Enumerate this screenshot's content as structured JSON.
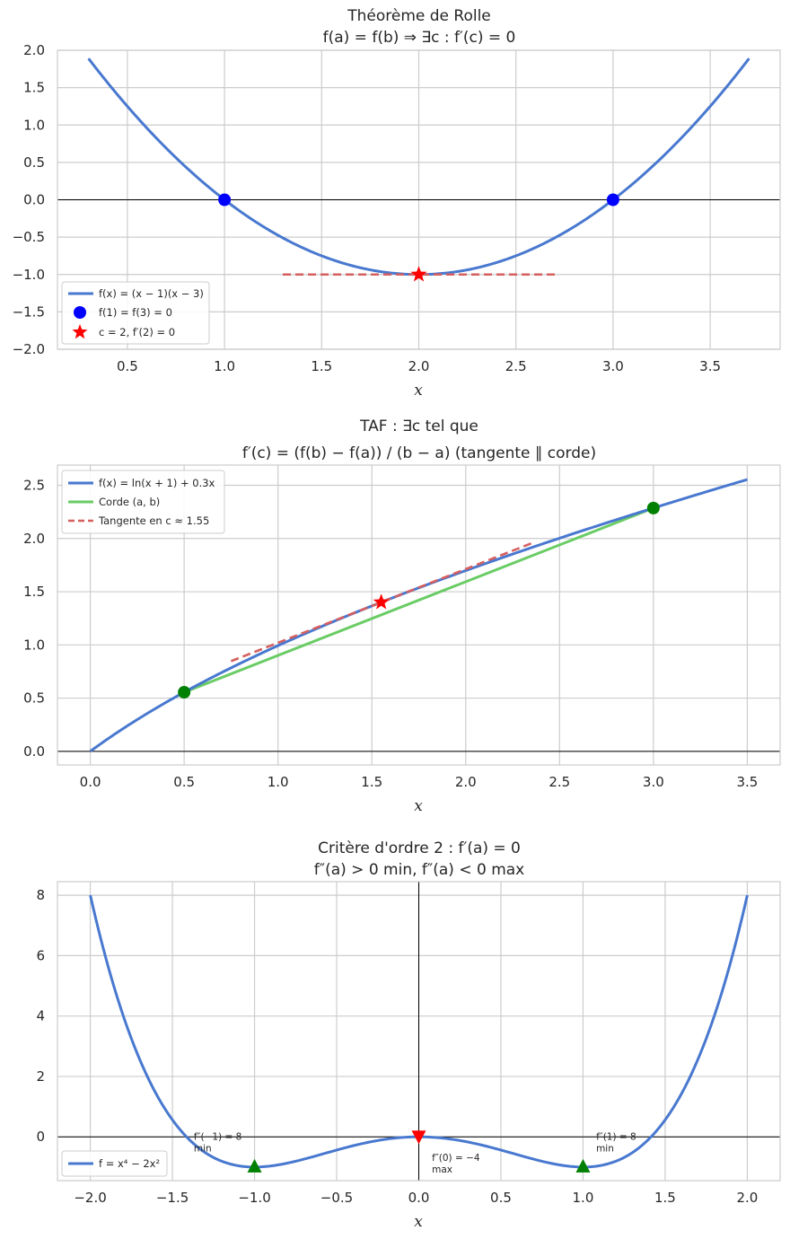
{
  "chart_data": [
    {
      "type": "line",
      "title_line1": "Théorème de Rolle",
      "title_line2": "f(a) = f(b)  ⇒  ∃c : f′(c) = 0",
      "xlabel": "x",
      "xlim": [
        0.14,
        3.86
      ],
      "ylim": [
        -2.0,
        2.0
      ],
      "xticks": [
        0.5,
        1.0,
        1.5,
        2.0,
        2.5,
        3.0,
        3.5
      ],
      "xtick_labels": [
        "0.5",
        "1.0",
        "1.5",
        "2.0",
        "2.5",
        "3.0",
        "3.5"
      ],
      "yticks": [
        -2.0,
        -1.5,
        -1.0,
        -0.5,
        0.0,
        0.5,
        1.0,
        1.5,
        2.0
      ],
      "ytick_labels": [
        "−2.0",
        "−1.5",
        "−1.0",
        "−0.5",
        "0.0",
        "0.5",
        "1.0",
        "1.5",
        "2.0"
      ],
      "function": "(x-1)*(x-3)",
      "domain": [
        0.3,
        3.7
      ],
      "color": "#4878cf",
      "tangent": {
        "x": [
          1.3,
          2.7
        ],
        "y": [
          -1.0,
          -1.0
        ],
        "color": "#d65f5f"
      },
      "points": [
        {
          "x": 1.0,
          "y": 0.0,
          "marker": "circle",
          "color": "#0000ff"
        },
        {
          "x": 3.0,
          "y": 0.0,
          "marker": "circle",
          "color": "#0000ff"
        },
        {
          "x": 2.0,
          "y": -1.0,
          "marker": "star",
          "color": "#ff0000"
        }
      ],
      "legend": [
        {
          "label": "f(x) = (x − 1)(x − 3)",
          "kind": "line",
          "color": "#4878cf"
        },
        {
          "label": "f(1) = f(3) = 0",
          "kind": "circle",
          "color": "#0000ff"
        },
        {
          "label": "c = 2, f′(2) = 0",
          "kind": "star",
          "color": "#ff0000"
        }
      ],
      "legend_loc": "lower-left",
      "grid": true
    },
    {
      "type": "line",
      "title_line1": "TAF : ∃c tel que",
      "title_line2": "f′(c) = (f(b) − f(a)) / (b − a)  (tangente ∥ corde)",
      "xlabel": "x",
      "xlim": [
        -0.175,
        3.675
      ],
      "ylim": [
        -0.128,
        2.69
      ],
      "xticks": [
        0.0,
        0.5,
        1.0,
        1.5,
        2.0,
        2.5,
        3.0,
        3.5
      ],
      "xtick_labels": [
        "0.0",
        "0.5",
        "1.0",
        "1.5",
        "2.0",
        "2.5",
        "3.0",
        "3.5"
      ],
      "yticks": [
        0.0,
        0.5,
        1.0,
        1.5,
        2.0,
        2.5
      ],
      "ytick_labels": [
        "0.0",
        "0.5",
        "1.0",
        "1.5",
        "2.0",
        "2.5"
      ],
      "function": "ln(x+1)+0.3x",
      "domain": [
        0.0,
        3.5
      ],
      "color": "#4878cf",
      "chord": {
        "x": [
          0.5,
          3.0
        ],
        "y": [
          0.555,
          2.286
        ],
        "color": "#6acc65"
      },
      "tangent": {
        "x": [
          0.75,
          2.35
        ],
        "c": 1.55,
        "slope": 0.692,
        "yc": 1.401,
        "color": "#d65f5f"
      },
      "points": [
        {
          "x": 0.5,
          "y": 0.555,
          "marker": "circle",
          "color": "#008000"
        },
        {
          "x": 3.0,
          "y": 2.286,
          "marker": "circle",
          "color": "#008000"
        },
        {
          "x": 1.55,
          "y": 1.401,
          "marker": "star",
          "color": "#ff0000"
        }
      ],
      "legend": [
        {
          "label": "f(x) = ln(x + 1) + 0.3x",
          "kind": "line",
          "color": "#4878cf"
        },
        {
          "label": "Corde (a, b)",
          "kind": "line",
          "color": "#6acc65"
        },
        {
          "label": "Tangente en c ≈ 1.55",
          "kind": "dashed",
          "color": "#d65f5f"
        }
      ],
      "legend_loc": "upper-left",
      "grid": true
    },
    {
      "type": "line",
      "title_line1": "Critère d'ordre 2 : f′(a) = 0",
      "title_line2": "f″(a) > 0 min, f″(a) < 0 max",
      "xlabel": "x",
      "xlim": [
        -2.2,
        2.2
      ],
      "ylim": [
        -1.45,
        8.45
      ],
      "xticks": [
        -2.0,
        -1.5,
        -1.0,
        -0.5,
        0.0,
        0.5,
        1.0,
        1.5,
        2.0
      ],
      "xtick_labels": [
        "−2.0",
        "−1.5",
        "−1.0",
        "−0.5",
        "0.0",
        "0.5",
        "1.0",
        "1.5",
        "2.0"
      ],
      "yticks": [
        0,
        2,
        4,
        6,
        8
      ],
      "ytick_labels": [
        "0",
        "2",
        "4",
        "6",
        "8"
      ],
      "function": "x^4-2x^2",
      "domain": [
        -2.0,
        2.0
      ],
      "color": "#4878cf",
      "points": [
        {
          "x": -1.0,
          "y": -1.0,
          "marker": "triangle-up",
          "color": "#008000"
        },
        {
          "x": 1.0,
          "y": -1.0,
          "marker": "triangle-up",
          "color": "#008000"
        },
        {
          "x": 0.0,
          "y": 0.0,
          "marker": "triangle-down",
          "color": "#ff0000"
        }
      ],
      "annotations": [
        {
          "line1": "f″(−1) = 8",
          "line2": "min",
          "x": -1.37,
          "y": -0.1
        },
        {
          "line1": "f″(0) = −4",
          "line2": "max",
          "x": 0.08,
          "y": -0.8
        },
        {
          "line1": "f″(1) = 8",
          "line2": "min",
          "x": 1.08,
          "y": -0.1
        }
      ],
      "legend": [
        {
          "label": "f = x⁴ − 2x²",
          "kind": "line",
          "color": "#4878cf"
        }
      ],
      "legend_loc": "lower-left",
      "grid": true
    }
  ]
}
